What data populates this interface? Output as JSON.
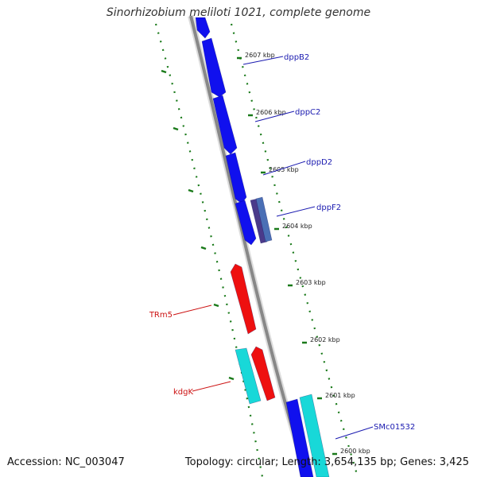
{
  "title": "Sinorhizobium meliloti 1021, complete genome",
  "footer": {
    "accession": "Accession: NC_003047",
    "summary": "Topology: circular; Length: 3,654,135 bp; Genes: 3,425"
  },
  "colors": {
    "background": "#ffffff",
    "backbone": "#888888",
    "tick_green": "#1a7a1a",
    "forward_gene": "#1010ee",
    "reverse_gene": "#ee1010",
    "rna_gene": "#18d8d8",
    "other_gene": "#4a6fb5",
    "label_blue": "#1a1ab0",
    "label_red": "#cc1111"
  },
  "scale_ticks": [
    "2607 kbp",
    "2606 kbp",
    "2605 kbp",
    "2604 kbp",
    "2603 kbp",
    "2602 kbp",
    "2601 kbp",
    "2600 kbp"
  ],
  "gene_labels": [
    {
      "name": "dppB2",
      "color": "label_blue"
    },
    {
      "name": "dppC2",
      "color": "label_blue"
    },
    {
      "name": "dppD2",
      "color": "label_blue"
    },
    {
      "name": "dppF2",
      "color": "label_blue"
    },
    {
      "name": "TRm5",
      "color": "label_red"
    },
    {
      "name": "kdgK",
      "color": "label_red"
    },
    {
      "name": "SMc01532",
      "color": "label_blue"
    }
  ]
}
